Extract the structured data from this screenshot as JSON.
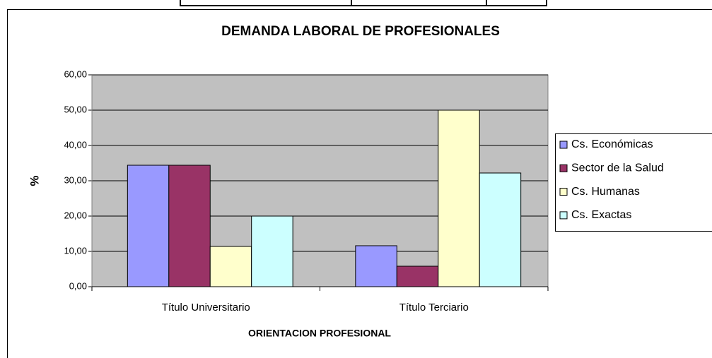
{
  "chart_data": {
    "type": "bar",
    "title": "DEMANDA LABORAL DE PROFESIONALES",
    "x_label": "ORIENTACION PROFESIONAL",
    "y_label": "%",
    "categories": [
      "Título Universitario",
      "Título Terciario"
    ],
    "series": [
      {
        "name": "Cs. Económicas",
        "color": "#9999ff",
        "values": [
          34.4,
          11.6
        ]
      },
      {
        "name": "Sector de la Salud",
        "color": "#993366",
        "values": [
          34.4,
          5.8
        ]
      },
      {
        "name": "Cs. Humanas",
        "color": "#ffffcc",
        "values": [
          11.4,
          50
        ]
      },
      {
        "name": "Cs. Exactas",
        "color": "#ccffff",
        "values": [
          20,
          32.2
        ]
      }
    ],
    "ylim": [
      0,
      60
    ],
    "yticks": [
      {
        "value": 0,
        "label": "0,00"
      },
      {
        "value": 10,
        "label": "10,00"
      },
      {
        "value": 20,
        "label": "20,00"
      },
      {
        "value": 30,
        "label": "30,00"
      },
      {
        "value": 40,
        "label": "40,00"
      },
      {
        "value": 50,
        "label": "50,00"
      },
      {
        "value": 60,
        "label": "60,00"
      }
    ],
    "grid": true,
    "legend": "right"
  }
}
